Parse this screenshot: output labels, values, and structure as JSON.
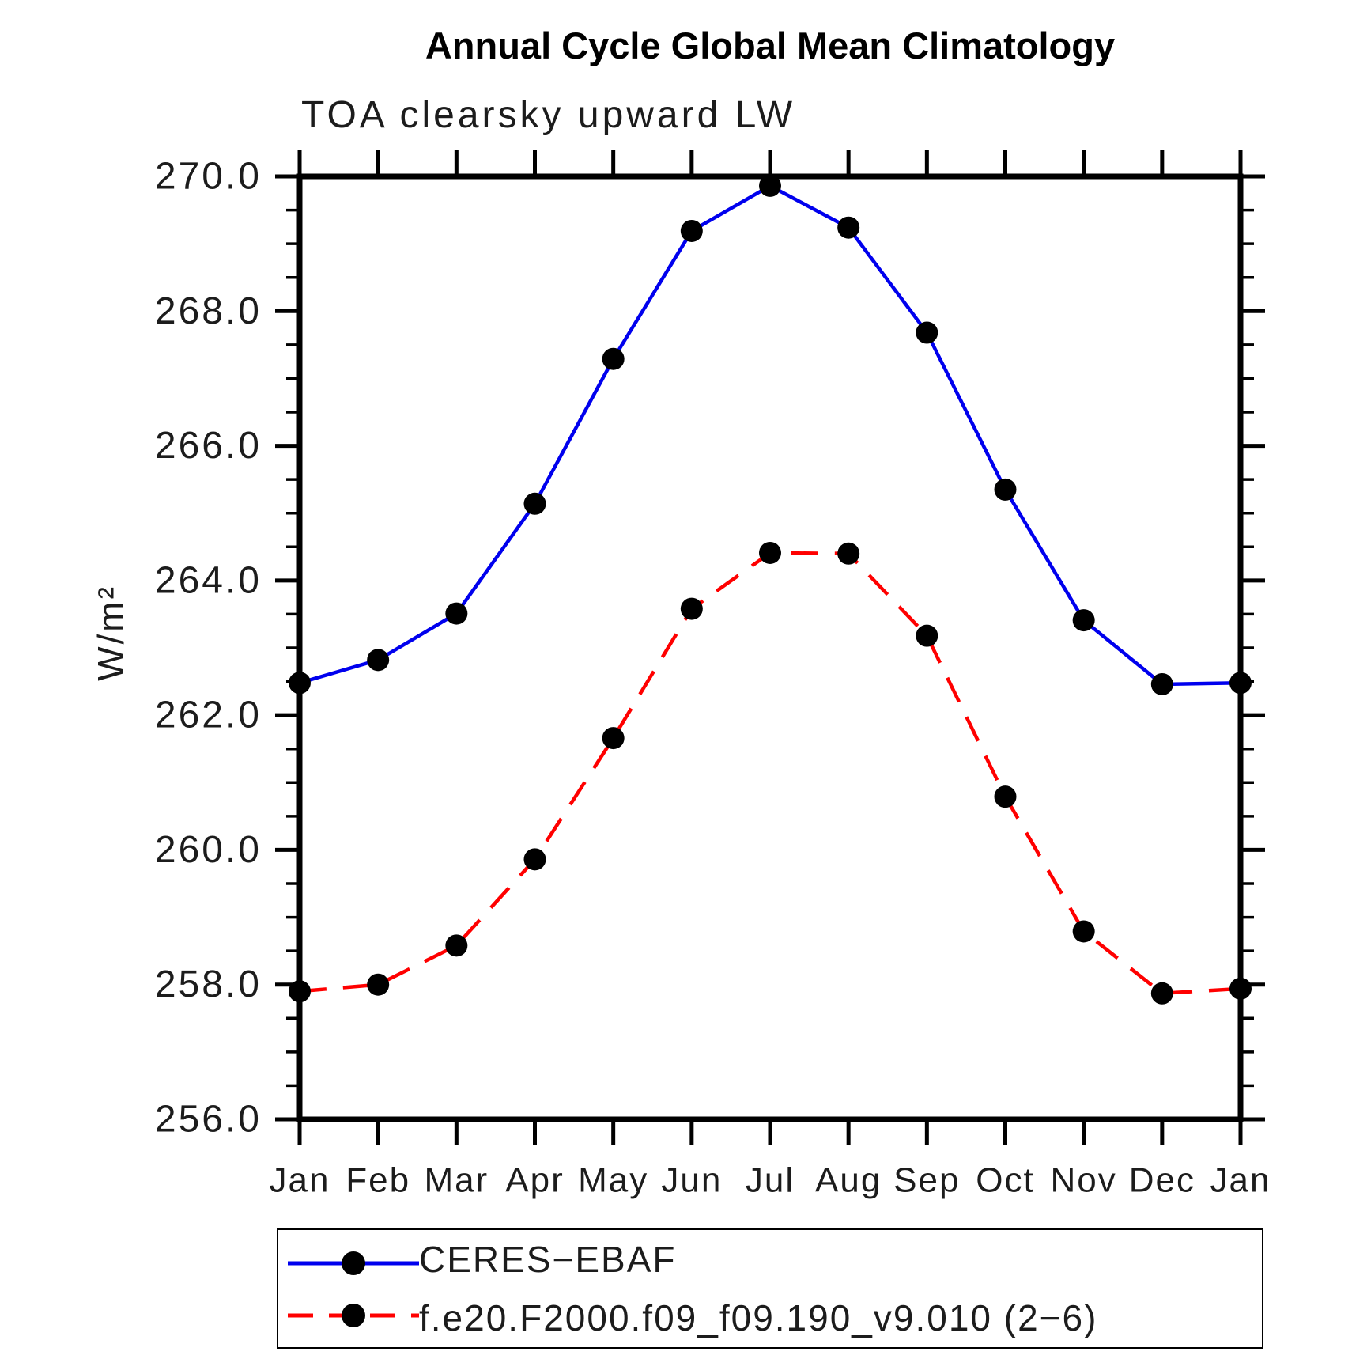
{
  "title": "Annual Cycle Global Mean Climatology",
  "subtitle": "TOA clearsky upward LW",
  "y_axis_label": "W/m²",
  "legend": {
    "entries": [
      {
        "label": "CERES−EBAF",
        "color": "#0000ee",
        "dash": "solid"
      },
      {
        "label": "f.e20.F2000.f09_f09.190_v9.010 (2−6)",
        "color": "#ff0000",
        "dash": "dashed"
      }
    ]
  },
  "chart_data": {
    "type": "line",
    "categories": [
      "Jan",
      "Feb",
      "Mar",
      "Apr",
      "May",
      "Jun",
      "Jul",
      "Aug",
      "Sep",
      "Oct",
      "Nov",
      "Dec",
      "Jan"
    ],
    "series": [
      {
        "name": "CERES−EBAF",
        "color": "#0000ee",
        "style": "solid",
        "marker": "circle",
        "marker_color": "#000000",
        "values": [
          262.48,
          262.82,
          263.51,
          265.14,
          267.29,
          269.19,
          269.86,
          269.24,
          267.68,
          265.35,
          263.41,
          262.46,
          262.48
        ]
      },
      {
        "name": "f.e20.F2000.f09_f09.190_v9.010 (2−6)",
        "color": "#ff0000",
        "style": "dashed",
        "marker": "circle",
        "marker_color": "#000000",
        "values": [
          257.9,
          258.0,
          258.58,
          259.86,
          261.66,
          263.58,
          264.41,
          264.4,
          263.18,
          260.79,
          258.79,
          257.87,
          257.94
        ]
      }
    ],
    "xlabel": "",
    "ylabel": "W/m²",
    "ylim": [
      256.0,
      270.0
    ],
    "ytick_major": 2.0,
    "ytick_minor": 0.5,
    "ytick_labels": [
      "256.0",
      "258.0",
      "260.0",
      "262.0",
      "264.0",
      "266.0",
      "268.0",
      "270.0"
    ],
    "grid": false,
    "legend_position": "bottom"
  }
}
